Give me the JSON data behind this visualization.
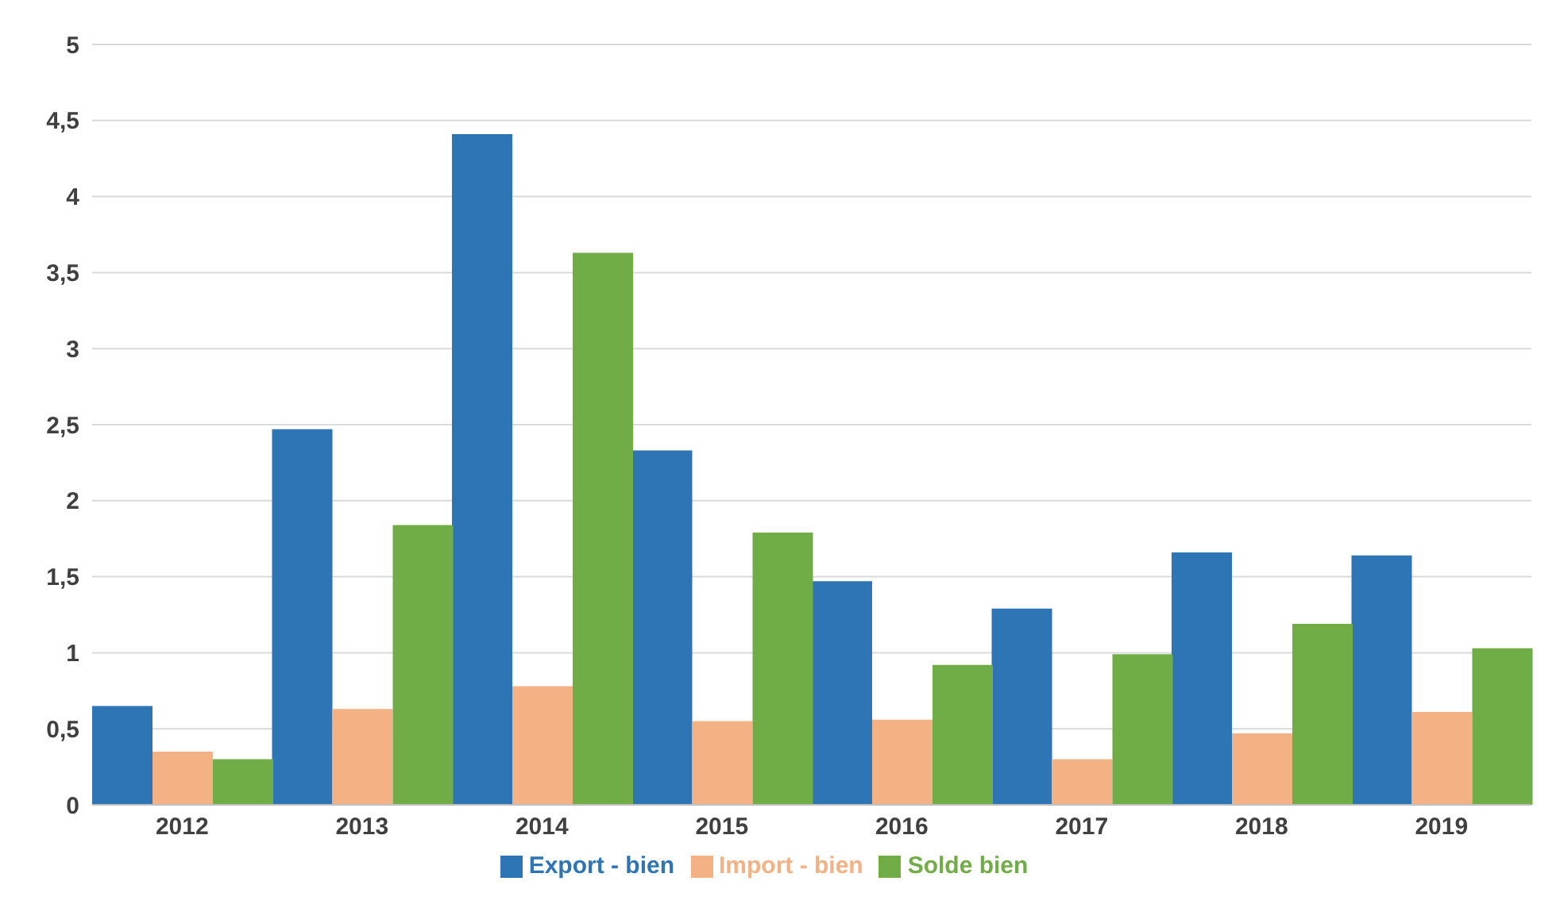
{
  "chart_data": {
    "type": "bar",
    "categories": [
      "2012",
      "2013",
      "2014",
      "2015",
      "2016",
      "2017",
      "2018",
      "2019"
    ],
    "series": [
      {
        "name": "Export - bien",
        "color": "#2e75b6",
        "values": [
          0.65,
          2.47,
          4.41,
          2.33,
          1.47,
          1.29,
          1.66,
          1.64
        ]
      },
      {
        "name": "Import - bien",
        "color": "#f4b183",
        "values": [
          0.35,
          0.63,
          0.78,
          0.55,
          0.56,
          0.3,
          0.47,
          0.61
        ]
      },
      {
        "name": "Solde bien",
        "color": "#70ad47",
        "values": [
          0.3,
          1.84,
          3.63,
          1.79,
          0.92,
          0.99,
          1.19,
          1.03
        ]
      }
    ],
    "ylim": [
      0,
      5
    ],
    "yticks": [
      0,
      {
        "value": 0.5,
        "label": "0,5"
      },
      1,
      {
        "value": 1.5,
        "label": "1,5"
      },
      2,
      {
        "value": 2.5,
        "label": "2,5"
      },
      3,
      {
        "value": 3.5,
        "label": "3,5"
      },
      4,
      {
        "value": 4.5,
        "label": "4,5"
      },
      5
    ],
    "grid": "y",
    "legend": "bottom"
  }
}
